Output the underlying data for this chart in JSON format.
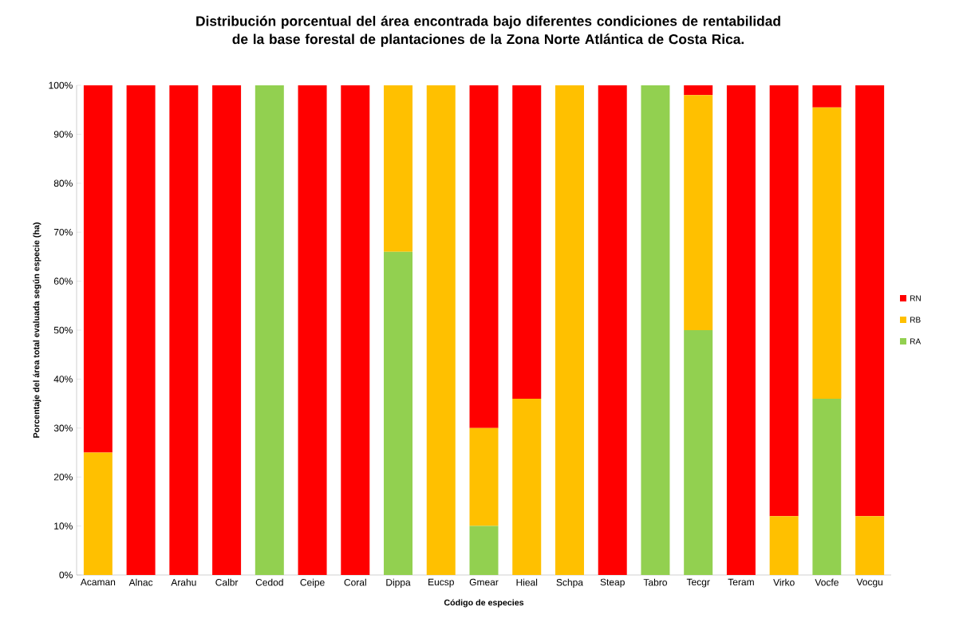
{
  "chart_data": {
    "type": "bar",
    "stacked": true,
    "title": "Distribución porcentual del área encontrada bajo diferentes condiciones de rentabilidad de la base forestal de plantaciones de la Zona Norte Atlántica de Costa Rica.",
    "xlabel": "Código de especies",
    "ylabel": "Porcentaje del área total evaluada según especie (ha)",
    "categories": [
      "Acaman",
      "Alnac",
      "Arahu",
      "Calbr",
      "Cedod",
      "Ceipe",
      "Coral",
      "Dippa",
      "Eucsp",
      "Gmear",
      "Hieal",
      "Schpa",
      "Steap",
      "Tabro",
      "Tecgr",
      "Teram",
      "Virko",
      "Vocfe",
      "Vocgu"
    ],
    "series": [
      {
        "name": "RA",
        "color": "#92d050",
        "values": [
          0,
          0,
          0,
          0,
          100,
          0,
          0,
          66,
          0,
          10,
          0,
          0,
          0,
          100,
          50,
          0,
          0,
          36,
          0
        ]
      },
      {
        "name": "RB",
        "color": "#ffc000",
        "values": [
          25,
          0,
          0,
          0,
          0,
          0,
          0,
          34,
          100,
          20,
          36,
          100,
          0,
          0,
          48,
          0,
          12,
          59.5,
          12
        ]
      },
      {
        "name": "RN",
        "color": "#ff0000",
        "values": [
          75,
          100,
          100,
          100,
          0,
          100,
          100,
          0,
          0,
          70,
          64,
          0,
          100,
          0,
          2,
          100,
          88,
          4.5,
          88
        ]
      }
    ],
    "ylim": [
      0,
      100
    ],
    "yticks": [
      {
        "value": 0,
        "label": "0%"
      },
      {
        "value": 10,
        "label": "10%"
      },
      {
        "value": 20,
        "label": "20%"
      },
      {
        "value": 30,
        "label": "30%"
      },
      {
        "value": 40,
        "label": "40%"
      },
      {
        "value": 50,
        "label": "50%"
      },
      {
        "value": 60,
        "label": "60%"
      },
      {
        "value": 70,
        "label": "70%"
      },
      {
        "value": 80,
        "label": "80%"
      },
      {
        "value": 90,
        "label": "90%"
      },
      {
        "value": 100,
        "label": "100%"
      }
    ],
    "legend": "right"
  }
}
